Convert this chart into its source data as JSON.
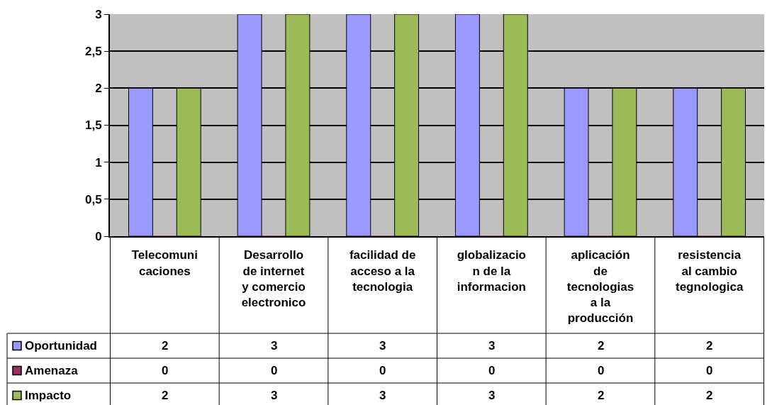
{
  "chart_data": {
    "type": "bar",
    "categories": [
      "Telecomunicaciones",
      "Desarrollo de internet y comercio electronico",
      "facilidad de acceso a la tecnologia",
      "globalizacion de la informacion",
      "aplicación de tecnologias a la producción",
      "resistencia al cambio tegnologica"
    ],
    "series": [
      {
        "name": "Oportunidad",
        "color": "#9999ff",
        "values": [
          2,
          3,
          3,
          3,
          2,
          2
        ]
      },
      {
        "name": "Amenaza",
        "color": "#993366",
        "values": [
          0,
          0,
          0,
          0,
          0,
          0
        ]
      },
      {
        "name": "Impacto",
        "color": "#9bbb59",
        "values": [
          2,
          3,
          3,
          3,
          2,
          2
        ]
      }
    ],
    "ylim": [
      0,
      3
    ],
    "yticks": [
      0,
      {
        "value": 0.5,
        "label": "0,5"
      },
      1,
      {
        "value": 1.5,
        "label": "1,5"
      },
      2,
      {
        "value": 2.5,
        "label": "2,5"
      },
      3
    ],
    "grid": "y",
    "legend": "bottom left",
    "data_labels": true
  }
}
